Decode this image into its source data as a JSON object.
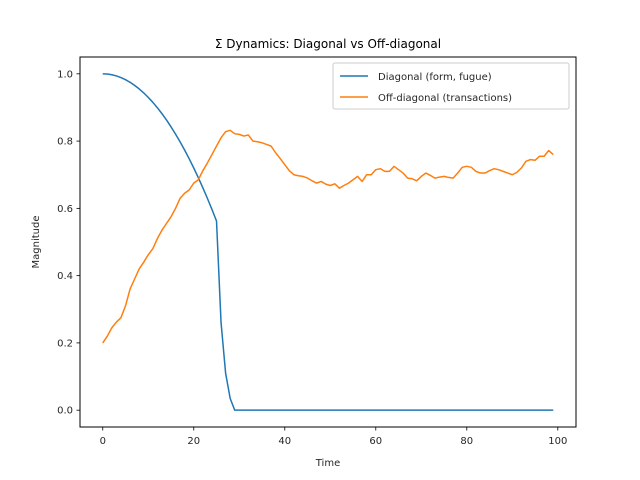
{
  "chart_data": {
    "type": "line",
    "title": "Σ Dynamics: Diagonal vs Off-diagonal",
    "xlabel": "Time",
    "ylabel": "Magnitude",
    "xlim": [
      -5,
      104
    ],
    "ylim": [
      -0.05,
      1.05
    ],
    "xticks": [
      0,
      20,
      40,
      60,
      80,
      100
    ],
    "xtick_labels": [
      "0",
      "20",
      "40",
      "60",
      "80",
      "100"
    ],
    "yticks": [
      0.0,
      0.2,
      0.4,
      0.6,
      0.8,
      1.0
    ],
    "ytick_labels": [
      "0.0",
      "0.2",
      "0.4",
      "0.6",
      "0.8",
      "1.0"
    ],
    "grid": false,
    "legend_position": "top-right",
    "series": [
      {
        "name": "Diagonal (form, fugue)",
        "color": "#1f77b4",
        "x": [
          0,
          1,
          2,
          3,
          4,
          5,
          6,
          7,
          8,
          9,
          10,
          11,
          12,
          13,
          14,
          15,
          16,
          17,
          18,
          19,
          20,
          21,
          22,
          23,
          24,
          25,
          26,
          27,
          28,
          29,
          30,
          40,
          50,
          60,
          70,
          80,
          90,
          99
        ],
        "y": [
          1.0,
          0.9993,
          0.9972,
          0.9937,
          0.9888,
          0.9825,
          0.9748,
          0.9657,
          0.9552,
          0.9433,
          0.93,
          0.9153,
          0.8992,
          0.8817,
          0.8628,
          0.8425,
          0.8208,
          0.7977,
          0.7732,
          0.7473,
          0.72,
          0.6913,
          0.6612,
          0.6297,
          0.5968,
          0.5625,
          0.26,
          0.11,
          0.035,
          0.0,
          0.0,
          0.0,
          0.0,
          0.0,
          0.0,
          0.0,
          0.0,
          0.0
        ]
      },
      {
        "name": "Off-diagonal (transactions)",
        "color": "#ff7f0e",
        "x": [
          0,
          1,
          2,
          3,
          4,
          5,
          6,
          7,
          8,
          9,
          10,
          11,
          12,
          13,
          14,
          15,
          16,
          17,
          18,
          19,
          20,
          21,
          22,
          23,
          24,
          25,
          26,
          27,
          28,
          29,
          30,
          31,
          32,
          33,
          34,
          35,
          36,
          37,
          38,
          39,
          40,
          41,
          42,
          43,
          44,
          45,
          46,
          47,
          48,
          49,
          50,
          51,
          52,
          53,
          54,
          55,
          56,
          57,
          58,
          59,
          60,
          61,
          62,
          63,
          64,
          65,
          66,
          67,
          68,
          69,
          70,
          71,
          72,
          73,
          74,
          75,
          76,
          77,
          78,
          79,
          80,
          81,
          82,
          83,
          84,
          85,
          86,
          87,
          88,
          89,
          90,
          91,
          92,
          93,
          94,
          95,
          96,
          97,
          98,
          99
        ],
        "y": [
          0.2,
          0.22,
          0.245,
          0.262,
          0.275,
          0.31,
          0.36,
          0.39,
          0.42,
          0.44,
          0.462,
          0.48,
          0.51,
          0.535,
          0.555,
          0.575,
          0.6,
          0.63,
          0.645,
          0.655,
          0.675,
          0.685,
          0.712,
          0.735,
          0.76,
          0.785,
          0.81,
          0.828,
          0.832,
          0.822,
          0.82,
          0.815,
          0.818,
          0.8,
          0.798,
          0.795,
          0.79,
          0.785,
          0.765,
          0.748,
          0.73,
          0.712,
          0.7,
          0.697,
          0.695,
          0.69,
          0.682,
          0.675,
          0.68,
          0.672,
          0.668,
          0.673,
          0.66,
          0.668,
          0.675,
          0.685,
          0.695,
          0.68,
          0.7,
          0.7,
          0.715,
          0.718,
          0.71,
          0.71,
          0.725,
          0.715,
          0.705,
          0.69,
          0.688,
          0.682,
          0.695,
          0.705,
          0.698,
          0.69,
          0.693,
          0.695,
          0.692,
          0.69,
          0.705,
          0.722,
          0.725,
          0.722,
          0.71,
          0.705,
          0.705,
          0.712,
          0.718,
          0.715,
          0.71,
          0.705,
          0.7,
          0.707,
          0.72,
          0.74,
          0.745,
          0.743,
          0.755,
          0.755,
          0.772,
          0.76
        ]
      }
    ]
  }
}
